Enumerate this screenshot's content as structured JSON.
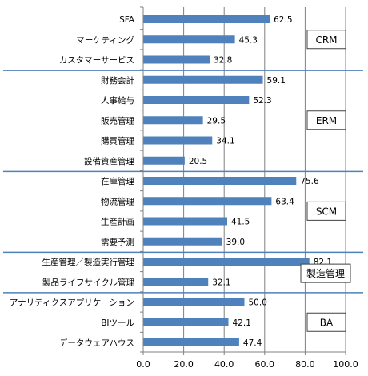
{
  "chart_data": {
    "type": "bar",
    "orientation": "horizontal",
    "categories": [
      "SFA",
      "マーケティング",
      "カスタマーサービス",
      "財務会計",
      "人事給与",
      "販売管理",
      "購買管理",
      "設備資産管理",
      "在庫管理",
      "物流管理",
      "生産計画",
      "需要予測",
      "生産管理／製造実行管理",
      "製品ライフサイクル管理",
      "アナリティクスアプリケーション",
      "BIツール",
      "データウェアハウス"
    ],
    "values": [
      62.5,
      45.3,
      32.8,
      59.1,
      52.3,
      29.5,
      34.1,
      20.5,
      75.6,
      63.4,
      41.5,
      39.0,
      82.1,
      32.1,
      50.0,
      42.1,
      47.4
    ],
    "value_labels": [
      "62.5",
      "45.3",
      "32.8",
      "59.1",
      "52.3",
      "29.5",
      "34.1",
      "20.5",
      "75.6",
      "63.4",
      "41.5",
      "39.0",
      "82.1",
      "32.1",
      "50.0",
      "42.1",
      "47.4"
    ],
    "groups": [
      {
        "label": "CRM",
        "start": 0,
        "end": 2
      },
      {
        "label": "ERM",
        "start": 3,
        "end": 7
      },
      {
        "label": "SCM",
        "start": 8,
        "end": 11
      },
      {
        "label": "製造管理",
        "start": 12,
        "end": 13
      },
      {
        "label": "BA",
        "start": 14,
        "end": 16
      }
    ],
    "xlim": [
      0,
      100
    ],
    "xticks": [
      "0.0",
      "20.0",
      "40.0",
      "60.0",
      "80.0",
      "100.0"
    ],
    "xtick_values": [
      0,
      20,
      40,
      60,
      80,
      100
    ],
    "grid": true,
    "bar_color": "#4F81BD",
    "separator_color": "#4F81BD",
    "title": "",
    "xlabel": "",
    "ylabel": ""
  }
}
